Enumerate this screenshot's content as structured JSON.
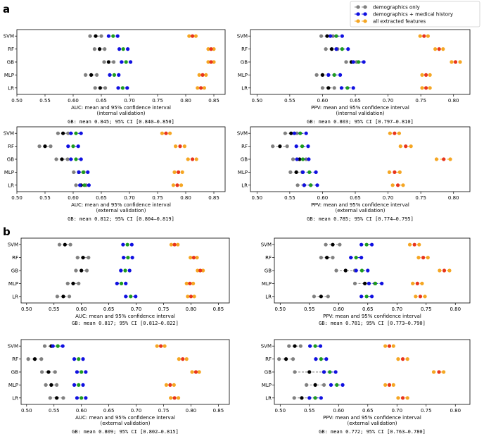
{
  "panel_labels": [
    "a",
    "b"
  ],
  "legend": [
    {
      "label": "demographics only",
      "color": "#808080"
    },
    {
      "label": "demographics + medical history",
      "color": "#1010e0"
    },
    {
      "label": "all extracted features",
      "color": "#f5a623"
    }
  ],
  "chart_data": [
    {
      "type": "scatter",
      "metric": "AUC",
      "xlabel": "AUC: mean and 95% confidence interval",
      "xlabel2": "(internal validation)",
      "note": "GB: mean 0.845; 95% CI [0.840–0.850]",
      "xlim": [
        0.5,
        0.87
      ],
      "xticks": [
        "0.50",
        "0.55",
        "0.60",
        "0.65",
        "0.70",
        "0.75",
        "0.80",
        "0.85"
      ],
      "categories": [
        "SVM",
        "RF",
        "GB",
        "MLP",
        "LR"
      ],
      "series": [
        {
          "name": "demographics only",
          "values": [
            0.64,
            0.647,
            0.663,
            0.632,
            0.648
          ],
          "ci": [
            [
              0.63,
              0.65
            ],
            [
              0.638,
              0.656
            ],
            [
              0.655,
              0.672
            ],
            [
              0.622,
              0.642
            ],
            [
              0.639,
              0.657
            ]
          ]
        },
        {
          "name": "demographics + medical history",
          "values": [
            0.671,
            0.689,
            0.694,
            0.673,
            0.688
          ],
          "ci": [
            [
              0.663,
              0.679
            ],
            [
              0.682,
              0.697
            ],
            [
              0.686,
              0.702
            ],
            [
              0.665,
              0.681
            ],
            [
              0.68,
              0.696
            ]
          ]
        },
        {
          "name": "all extracted features",
          "values": [
            0.812,
            0.845,
            0.845,
            0.83,
            0.827
          ],
          "ci": [
            [
              0.806,
              0.818
            ],
            [
              0.84,
              0.85
            ],
            [
              0.84,
              0.85
            ],
            [
              0.824,
              0.836
            ],
            [
              0.821,
              0.833
            ]
          ]
        }
      ]
    },
    {
      "type": "scatter",
      "metric": "PPV",
      "xlabel": "PPV: mean and 95% confidence interval",
      "xlabel2": "(internal validation)",
      "note": "GB: mean 0.803; 95% CI [0.797–0.810]",
      "xlim": [
        0.49,
        0.825
      ],
      "xticks": [
        "0.50",
        "0.55",
        "0.60",
        "0.65",
        "0.70",
        "0.75",
        "0.80"
      ],
      "categories": [
        "SVM",
        "RF",
        "GB",
        "MLP",
        "LR"
      ],
      "series": [
        {
          "name": "demographics only",
          "values": [
            0.607,
            0.614,
            0.644,
            0.6,
            0.609
          ],
          "ci": [
            [
              0.598,
              0.616
            ],
            [
              0.605,
              0.623
            ],
            [
              0.636,
              0.652
            ],
            [
              0.591,
              0.609
            ],
            [
              0.6,
              0.618
            ]
          ]
        },
        {
          "name": "demographics + medical history",
          "values": [
            0.621,
            0.63,
            0.655,
            0.618,
            0.638
          ],
          "ci": [
            [
              0.612,
              0.63
            ],
            [
              0.621,
              0.639
            ],
            [
              0.647,
              0.663
            ],
            [
              0.609,
              0.627
            ],
            [
              0.629,
              0.647
            ]
          ]
        },
        {
          "name": "all extracted features",
          "values": [
            0.755,
            0.778,
            0.803,
            0.758,
            0.758
          ],
          "ci": [
            [
              0.749,
              0.761
            ],
            [
              0.772,
              0.784
            ],
            [
              0.797,
              0.81
            ],
            [
              0.752,
              0.764
            ],
            [
              0.752,
              0.764
            ]
          ]
        }
      ]
    },
    {
      "type": "scatter",
      "metric": "AUC",
      "xlabel": "AUC: mean and 95% confidence interval",
      "xlabel2": "(external validation)",
      "note": "GB: mean 0.812; 95% CI [0.804–0.819]",
      "xlim": [
        0.5,
        0.87
      ],
      "xticks": [
        "0.50",
        "0.55",
        "0.60",
        "0.65",
        "0.70",
        "0.75",
        "0.80",
        "0.85"
      ],
      "categories": [
        "SVM",
        "RF",
        "GB",
        "MLP",
        "LR"
      ],
      "series": [
        {
          "name": "demographics only",
          "values": [
            0.582,
            0.55,
            0.58,
            0.61,
            0.614
          ],
          "ci": [
            [
              0.573,
              0.591
            ],
            [
              0.54,
              0.56
            ],
            [
              0.57,
              0.59
            ],
            [
              0.601,
              0.619
            ],
            [
              0.605,
              0.623
            ]
          ]
        },
        {
          "name": "demographics + medical history",
          "values": [
            0.605,
            0.6,
            0.605,
            0.618,
            0.62
          ],
          "ci": [
            [
              0.596,
              0.614
            ],
            [
              0.591,
              0.609
            ],
            [
              0.596,
              0.614
            ],
            [
              0.61,
              0.626
            ],
            [
              0.612,
              0.628
            ]
          ]
        },
        {
          "name": "all extracted features",
          "values": [
            0.765,
            0.79,
            0.812,
            0.787,
            0.785
          ],
          "ci": [
            [
              0.758,
              0.772
            ],
            [
              0.782,
              0.798
            ],
            [
              0.804,
              0.819
            ],
            [
              0.78,
              0.794
            ],
            [
              0.778,
              0.792
            ]
          ]
        }
      ]
    },
    {
      "type": "scatter",
      "metric": "PPV",
      "xlabel": "PPV: mean and 95% confidence interval",
      "xlabel2": "(external validation)",
      "note": "GB: mean 0.785; 95% CI [0.774–0.795]",
      "xlim": [
        0.49,
        0.825
      ],
      "xticks": [
        "0.50",
        "0.55",
        "0.60",
        "0.65",
        "0.70",
        "0.75",
        "0.80"
      ],
      "categories": [
        "SVM",
        "RF",
        "GB",
        "MLP",
        "LR"
      ],
      "series": [
        {
          "name": "demographics only",
          "values": [
            0.552,
            0.535,
            0.565,
            0.56,
            0.572
          ],
          "ci": [
            [
              0.543,
              0.561
            ],
            [
              0.524,
              0.546
            ],
            [
              0.555,
              0.575
            ],
            [
              0.551,
              0.569
            ],
            [
              0.562,
              0.582
            ]
          ]
        },
        {
          "name": "demographics + medical history",
          "values": [
            0.566,
            0.569,
            0.57,
            0.58,
            0.582
          ],
          "ci": [
            [
              0.557,
              0.575
            ],
            [
              0.56,
              0.578
            ],
            [
              0.561,
              0.579
            ],
            [
              0.57,
              0.59
            ],
            [
              0.572,
              0.592
            ]
          ]
        },
        {
          "name": "all extracted features",
          "values": [
            0.71,
            0.727,
            0.785,
            0.71,
            0.715
          ],
          "ci": [
            [
              0.703,
              0.717
            ],
            [
              0.719,
              0.735
            ],
            [
              0.774,
              0.795
            ],
            [
              0.702,
              0.718
            ],
            [
              0.707,
              0.723
            ]
          ]
        }
      ]
    },
    {
      "type": "scatter",
      "metric": "AUC",
      "xlabel": "AUC: mean and 95% confidence interval",
      "xlabel2": "",
      "note": "GB: mean 0.817; 95% CI [0.812–0.822]",
      "xlim": [
        0.49,
        0.87
      ],
      "xticks": [
        "0.50",
        "0.55",
        "0.60",
        "0.65",
        "0.70",
        "0.75",
        "0.80",
        "0.85"
      ],
      "categories": [
        "SVM",
        "RF",
        "GB",
        "MLP",
        "LR"
      ],
      "series": [
        {
          "name": "demographics only",
          "values": [
            0.57,
            0.603,
            0.6,
            0.585,
            0.567
          ],
          "ci": [
            [
              0.56,
              0.58
            ],
            [
              0.593,
              0.613
            ],
            [
              0.59,
              0.61
            ],
            [
              0.575,
              0.595
            ],
            [
              0.556,
              0.578
            ]
          ]
        },
        {
          "name": "demographics + medical history",
          "values": [
            0.684,
            0.685,
            0.68,
            0.673,
            0.69
          ],
          "ci": [
            [
              0.676,
              0.692
            ],
            [
              0.677,
              0.693
            ],
            [
              0.672,
              0.688
            ],
            [
              0.665,
              0.681
            ],
            [
              0.681,
              0.699
            ]
          ]
        },
        {
          "name": "all extracted features",
          "values": [
            0.77,
            0.805,
            0.817,
            0.798,
            0.8
          ],
          "ci": [
            [
              0.764,
              0.776
            ],
            [
              0.799,
              0.811
            ],
            [
              0.812,
              0.822
            ],
            [
              0.792,
              0.804
            ],
            [
              0.794,
              0.806
            ]
          ]
        }
      ]
    },
    {
      "type": "scatter",
      "metric": "PPV",
      "xlabel": "PPV: mean and 95% confidence interval",
      "xlabel2": "",
      "note": "GB: mean 0.781; 95% CI [0.773–0.790]",
      "xlim": [
        0.49,
        0.825
      ],
      "xticks": [
        "0.50",
        "0.55",
        "0.60",
        "0.65",
        "0.70",
        "0.75",
        "0.80"
      ],
      "categories": [
        "SVM",
        "RF",
        "GB",
        "MLP",
        "LR"
      ],
      "series": [
        {
          "name": "demographics only",
          "values": [
            0.59,
            0.58,
            0.612,
            0.645,
            0.57
          ],
          "ci": [
            [
              0.578,
              0.602
            ],
            [
              0.57,
              0.59
            ],
            [
              0.596,
              0.628
            ],
            [
              0.628,
              0.662
            ],
            [
              0.558,
              0.582
            ]
          ]
        },
        {
          "name": "demographics + medical history",
          "values": [
            0.648,
            0.63,
            0.64,
            0.663,
            0.648
          ],
          "ci": [
            [
              0.639,
              0.657
            ],
            [
              0.621,
              0.639
            ],
            [
              0.63,
              0.65
            ],
            [
              0.652,
              0.674
            ],
            [
              0.639,
              0.657
            ]
          ]
        },
        {
          "name": "all extracted features",
          "values": [
            0.73,
            0.745,
            0.781,
            0.735,
            0.74
          ],
          "ci": [
            [
              0.722,
              0.738
            ],
            [
              0.737,
              0.753
            ],
            [
              0.773,
              0.79
            ],
            [
              0.727,
              0.743
            ],
            [
              0.732,
              0.748
            ]
          ]
        }
      ]
    },
    {
      "type": "scatter",
      "metric": "AUC",
      "xlabel": "AUC: mean and 95% confidence interval",
      "xlabel2": "(external validation)",
      "note": "GB: mean 0.809; 95% CI [0.802–0.815]",
      "xlim": [
        0.49,
        0.87
      ],
      "xticks": [
        "0.50",
        "0.55",
        "0.60",
        "0.65",
        "0.70",
        "0.75",
        "0.80",
        "0.85"
      ],
      "categories": [
        "SVM",
        "RF",
        "GB",
        "MLP",
        "LR"
      ],
      "series": [
        {
          "name": "demographics only",
          "values": [
            0.545,
            0.515,
            0.54,
            0.545,
            0.555
          ],
          "ci": [
            [
              0.533,
              0.557
            ],
            [
              0.503,
              0.527
            ],
            [
              0.528,
              0.552
            ],
            [
              0.535,
              0.555
            ],
            [
              0.543,
              0.567
            ]
          ]
        },
        {
          "name": "demographics + medical history",
          "values": [
            0.557,
            0.595,
            0.6,
            0.595,
            0.6
          ],
          "ci": [
            [
              0.548,
              0.566
            ],
            [
              0.587,
              0.603
            ],
            [
              0.592,
              0.608
            ],
            [
              0.587,
              0.603
            ],
            [
              0.592,
              0.608
            ]
          ]
        },
        {
          "name": "all extracted features",
          "values": [
            0.745,
            0.785,
            0.809,
            0.762,
            0.77
          ],
          "ci": [
            [
              0.738,
              0.752
            ],
            [
              0.778,
              0.792
            ],
            [
              0.802,
              0.815
            ],
            [
              0.755,
              0.769
            ],
            [
              0.763,
              0.777
            ]
          ]
        }
      ]
    },
    {
      "type": "scatter",
      "metric": "PPV",
      "xlabel": "PPV: mean and 95% confidence interval",
      "xlabel2": "(external validation)",
      "note": "GB: mean 0.772; 95% CI [0.763–0.780]",
      "xlim": [
        0.49,
        0.825
      ],
      "xticks": [
        "0.50",
        "0.55",
        "0.60",
        "0.65",
        "0.70",
        "0.75",
        "0.80"
      ],
      "categories": [
        "SVM",
        "RF",
        "GB",
        "MLP",
        "LR"
      ],
      "series": [
        {
          "name": "demographics only",
          "values": [
            0.525,
            0.51,
            0.55,
            0.56,
            0.537
          ],
          "ci": [
            [
              0.515,
              0.535
            ],
            [
              0.498,
              0.522
            ],
            [
              0.525,
              0.575
            ],
            [
              0.545,
              0.575
            ],
            [
              0.524,
              0.55
            ]
          ]
        },
        {
          "name": "demographics + medical history",
          "values": [
            0.56,
            0.57,
            0.585,
            0.597,
            0.56
          ],
          "ci": [
            [
              0.551,
              0.569
            ],
            [
              0.561,
              0.579
            ],
            [
              0.575,
              0.595
            ],
            [
              0.587,
              0.607
            ],
            [
              0.55,
              0.57
            ]
          ]
        },
        {
          "name": "all extracted features",
          "values": [
            0.687,
            0.71,
            0.772,
            0.687,
            0.71
          ],
          "ci": [
            [
              0.68,
              0.694
            ],
            [
              0.702,
              0.718
            ],
            [
              0.763,
              0.78
            ],
            [
              0.68,
              0.694
            ],
            [
              0.702,
              0.718
            ]
          ]
        }
      ]
    }
  ]
}
